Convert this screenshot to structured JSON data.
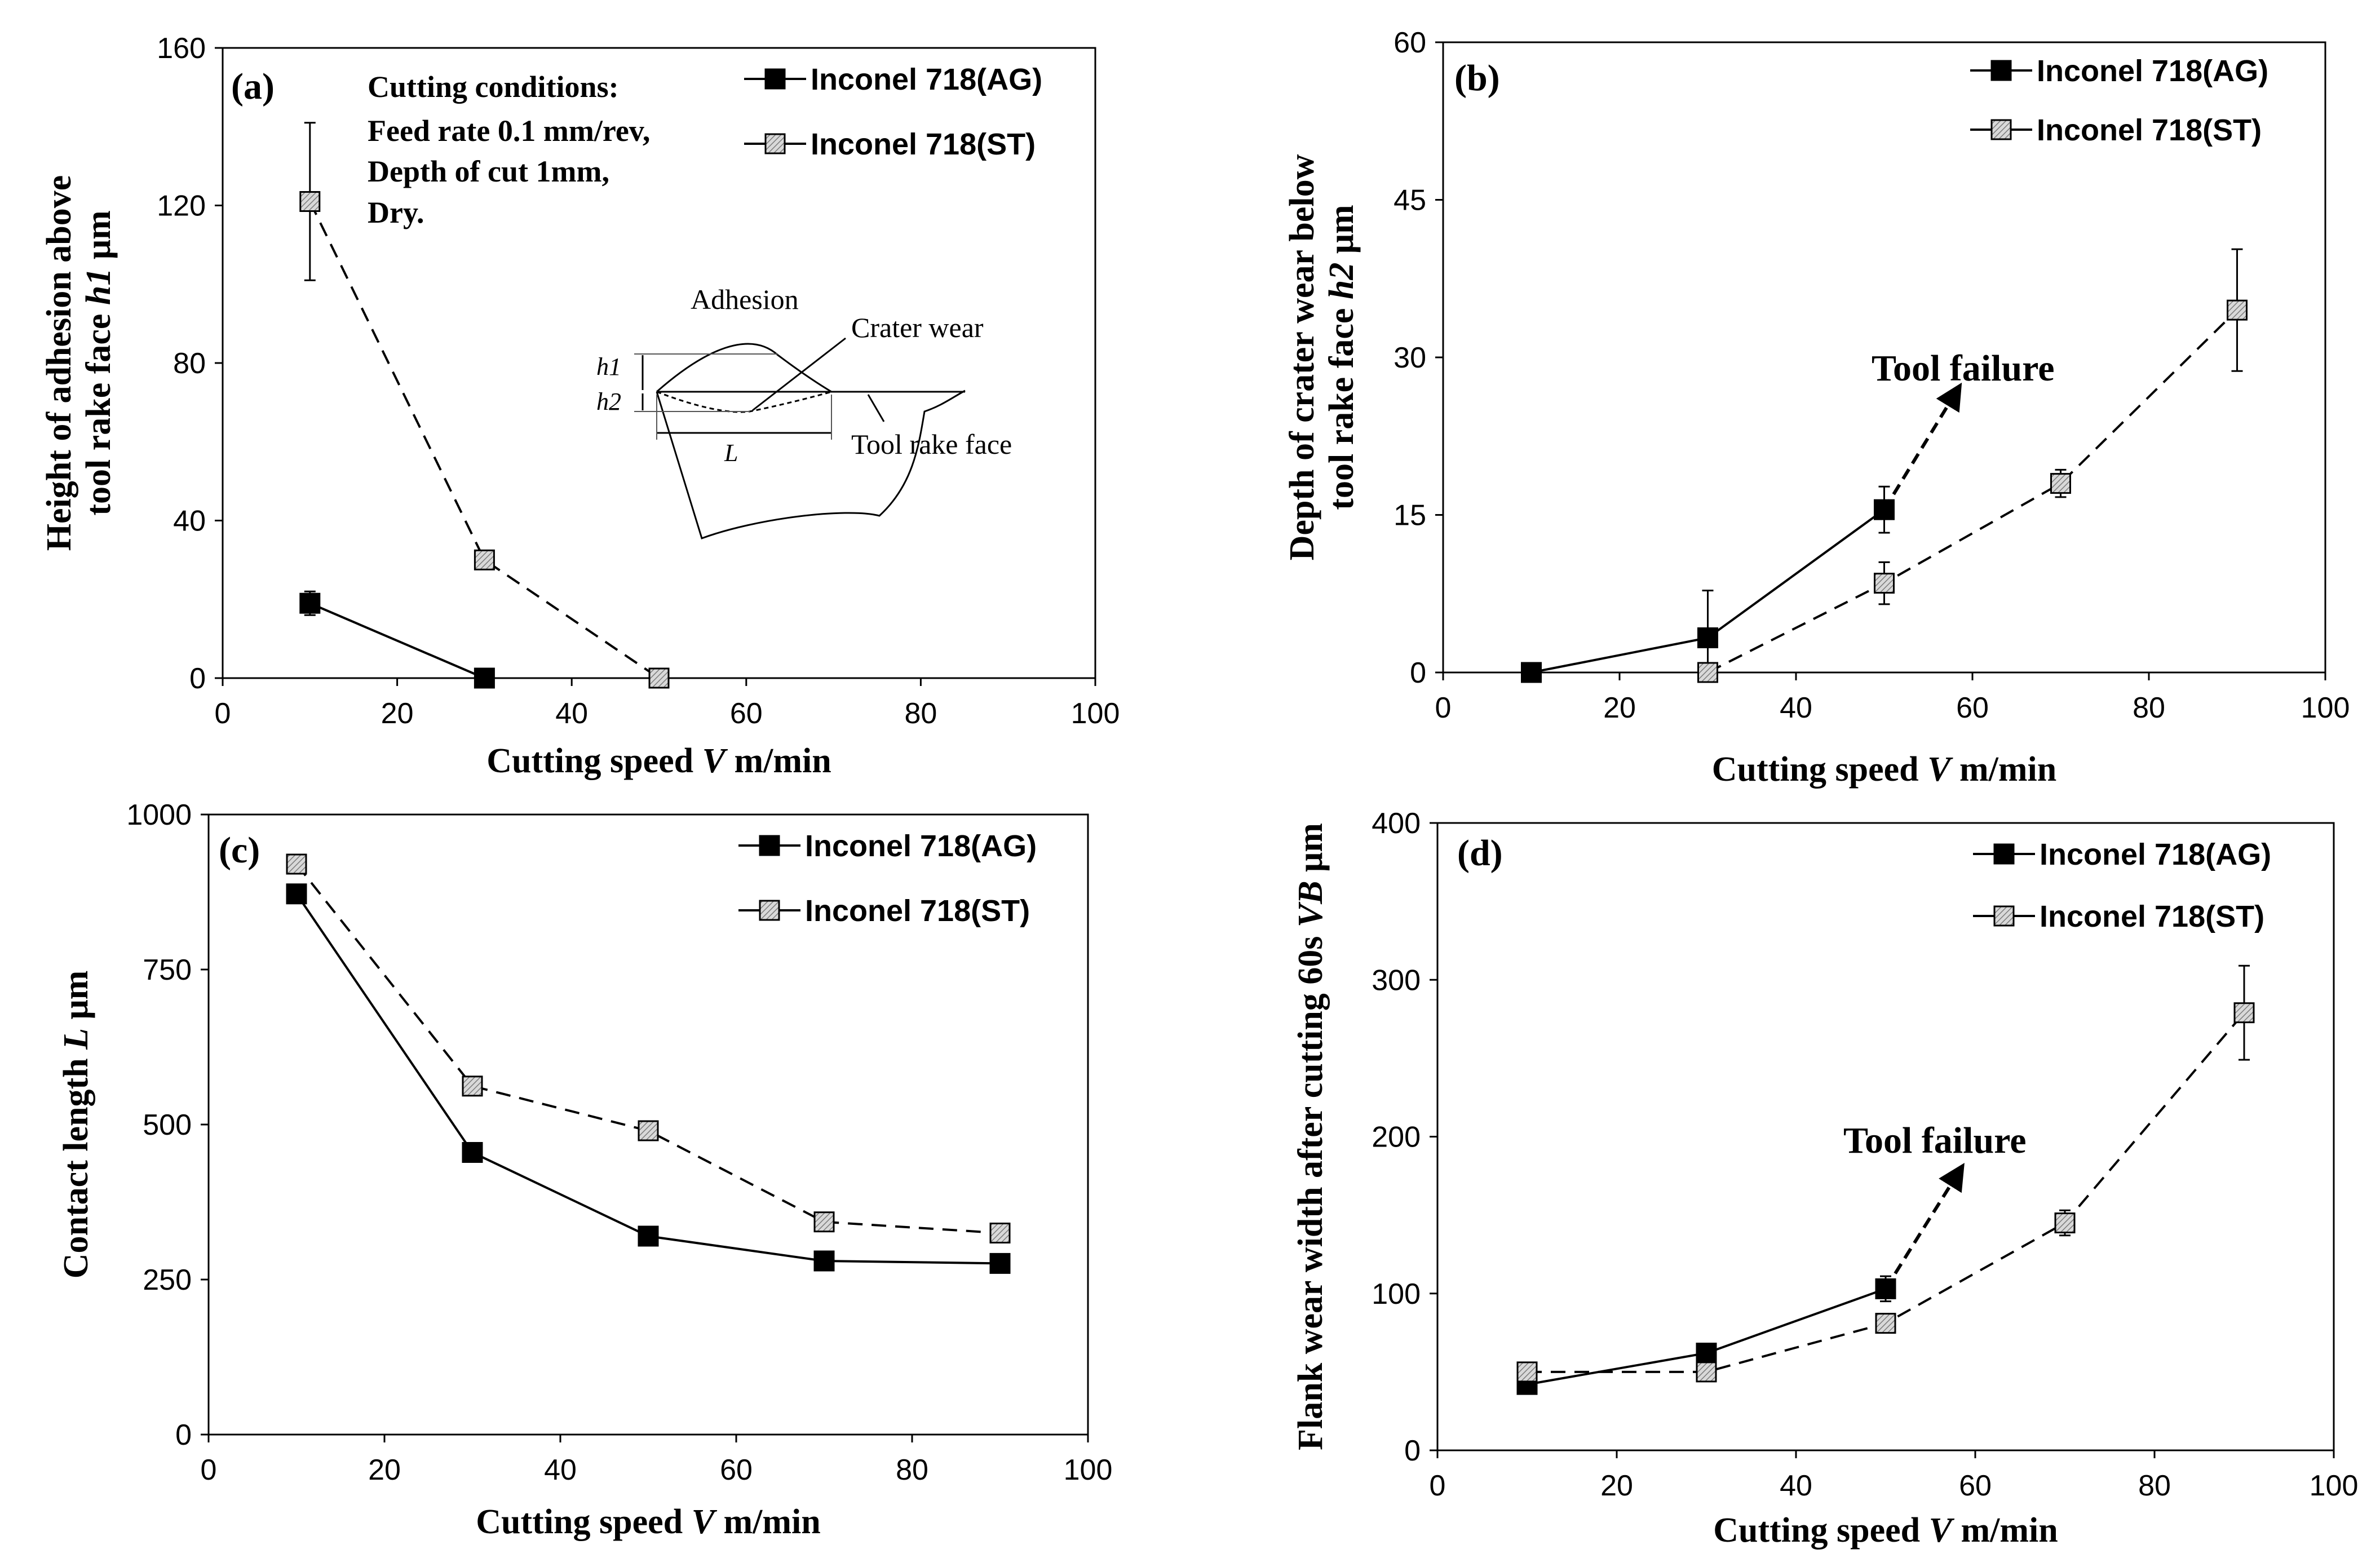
{
  "colors": {
    "ag": "#000000",
    "st": "#bdbdbd",
    "axis": "#000000"
  },
  "legend": {
    "ag": "Inconel 718(AG)",
    "st": "Inconel 718(ST)"
  },
  "chart_data": [
    {
      "id": "a",
      "panel_label": "(a)",
      "type": "line",
      "xlabel": "Cutting speed V m/min",
      "xlabel_parts": [
        "Cutting speed ",
        "V",
        " m/min"
      ],
      "ylabel_lines": [
        "Height of adhesion above",
        "tool rake face h1 μm"
      ],
      "ylabel_line2_parts": [
        "tool rake face ",
        "h1",
        " μm"
      ],
      "xlim": [
        0,
        100
      ],
      "ylim": [
        0,
        160
      ],
      "xticks": [
        "0",
        "20",
        "40",
        "60",
        "80",
        "100"
      ],
      "yticks": [
        "0",
        "40",
        "80",
        "120",
        "160"
      ],
      "legend_position": "top-right",
      "series": [
        {
          "name": "Inconel 718(AG)",
          "key": "ag",
          "dashed": false,
          "x": [
            10,
            30
          ],
          "y": [
            19,
            0
          ],
          "err": [
            3,
            0
          ]
        },
        {
          "name": "Inconel 718(ST)",
          "key": "st",
          "dashed": true,
          "x": [
            10,
            30,
            50
          ],
          "y": [
            121,
            30,
            0
          ],
          "err": [
            20,
            0,
            0
          ]
        }
      ],
      "conditions": [
        "Cutting conditions:",
        "Feed rate 0.1 mm/rev,",
        "Depth of cut 1mm,",
        "Dry."
      ],
      "inset_labels": {
        "adhesion": "Adhesion",
        "crater": "Crater wear",
        "rake": "Tool rake face",
        "h1": "h1",
        "h2": "h2",
        "L": "L"
      }
    },
    {
      "id": "b",
      "panel_label": "(b)",
      "type": "line",
      "xlabel": "Cutting speed V m/min",
      "xlabel_parts": [
        "Cutting speed ",
        "V",
        " m/min"
      ],
      "ylabel_lines": [
        "Depth of crater wear below",
        "tool rake face h2 μm"
      ],
      "ylabel_line2_parts": [
        "tool rake face ",
        "h2",
        " μm"
      ],
      "xlim": [
        0,
        100
      ],
      "ylim": [
        0,
        60
      ],
      "xticks": [
        "0",
        "20",
        "40",
        "60",
        "80",
        "100"
      ],
      "yticks": [
        "0",
        "15",
        "30",
        "45",
        "60"
      ],
      "legend_position": "top-right",
      "series": [
        {
          "name": "Inconel 718(AG)",
          "key": "ag",
          "dashed": false,
          "x": [
            10,
            30,
            50
          ],
          "y": [
            0,
            3.3,
            15.5
          ],
          "err": [
            0,
            4.5,
            2.2
          ]
        },
        {
          "name": "Inconel 718(ST)",
          "key": "st",
          "dashed": true,
          "x": [
            30,
            50,
            70,
            90
          ],
          "y": [
            0,
            8.5,
            18,
            34.5
          ],
          "err": [
            0,
            2,
            1.3,
            5.8
          ]
        }
      ],
      "failure_label": "Tool failure",
      "failure_arrow": {
        "from": [
          50,
          15.5
        ],
        "to": [
          58,
          26.5
        ]
      }
    },
    {
      "id": "c",
      "panel_label": "(c)",
      "type": "line",
      "xlabel": "Cutting speed V m/min",
      "xlabel_parts": [
        "Cutting speed ",
        "V",
        " m/min"
      ],
      "ylabel_lines": [
        "Contact length L μm"
      ],
      "ylabel_line1_parts": [
        "Contact length ",
        "L",
        " μm"
      ],
      "xlim": [
        0,
        100
      ],
      "ylim": [
        0,
        1000
      ],
      "xticks": [
        "0",
        "20",
        "40",
        "60",
        "80",
        "100"
      ],
      "yticks": [
        "0",
        "250",
        "500",
        "750",
        "1000"
      ],
      "legend_position": "top-right",
      "series": [
        {
          "name": "Inconel 718(AG)",
          "key": "ag",
          "dashed": false,
          "x": [
            10,
            30,
            50,
            70,
            90
          ],
          "y": [
            872,
            455,
            320,
            280,
            276
          ],
          "err": [
            0,
            0,
            0,
            0,
            0
          ]
        },
        {
          "name": "Inconel 718(ST)",
          "key": "st",
          "dashed": true,
          "x": [
            10,
            30,
            50,
            70,
            90
          ],
          "y": [
            920,
            562,
            490,
            343,
            325
          ],
          "err": [
            0,
            0,
            0,
            0,
            0
          ]
        }
      ]
    },
    {
      "id": "d",
      "panel_label": "(d)",
      "type": "line",
      "xlabel": "Cutting speed V m/min",
      "xlabel_parts": [
        "Cutting speed ",
        "V",
        " m/min"
      ],
      "ylabel_lines": [
        "Flank wear width after cutting 60s VB μm"
      ],
      "ylabel_line1_parts": [
        "Flank wear width after cutting 60s ",
        "VB",
        " μm"
      ],
      "xlim": [
        0,
        100
      ],
      "ylim": [
        0,
        400
      ],
      "xticks": [
        "0",
        "20",
        "40",
        "60",
        "80",
        "100"
      ],
      "yticks": [
        "0",
        "100",
        "200",
        "300",
        "400"
      ],
      "legend_position": "top-right",
      "series": [
        {
          "name": "Inconel 718(AG)",
          "key": "ag",
          "dashed": false,
          "x": [
            10,
            30,
            50
          ],
          "y": [
            42,
            62,
            103
          ],
          "err": [
            0,
            0,
            8
          ]
        },
        {
          "name": "Inconel 718(ST)",
          "key": "st",
          "dashed": true,
          "x": [
            10,
            30,
            50,
            70,
            90
          ],
          "y": [
            50,
            50,
            81,
            145,
            279
          ],
          "err": [
            0,
            0,
            0,
            8,
            30
          ]
        }
      ],
      "failure_label": "Tool failure",
      "failure_arrow": {
        "from": [
          50,
          103
        ],
        "to": [
          58,
          176
        ]
      }
    }
  ]
}
